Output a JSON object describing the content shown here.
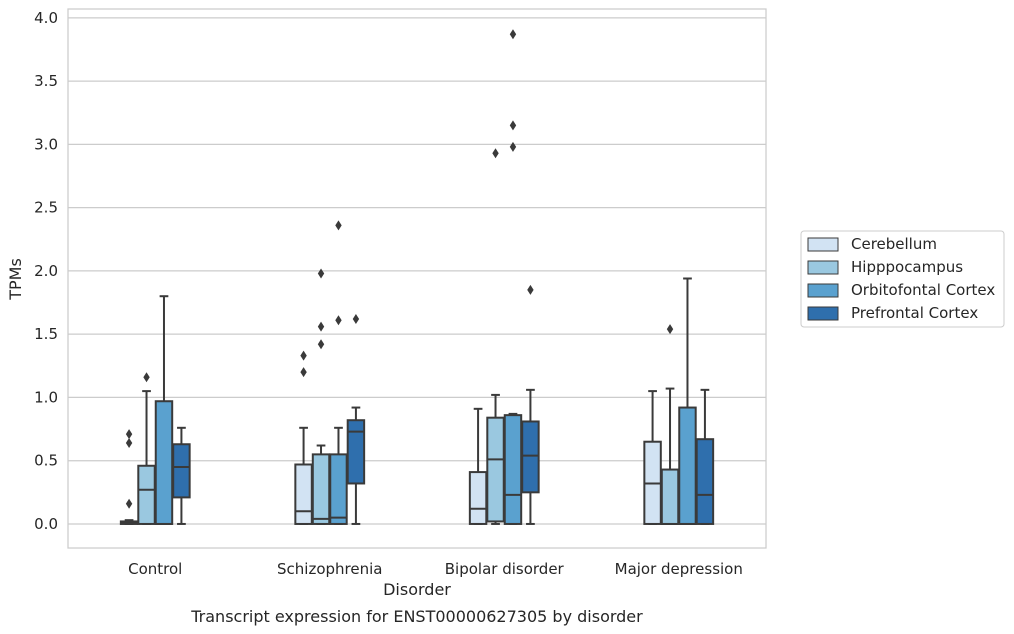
{
  "chart_data": {
    "type": "box",
    "xlabel": "Disorder",
    "ylabel": "TPMs",
    "caption": "Transcript expression for ENST00000627305 by disorder",
    "ylim": [
      -0.19,
      4.07
    ],
    "yticks": [
      0.0,
      0.5,
      1.0,
      1.5,
      2.0,
      2.5,
      3.0,
      3.5,
      4.0
    ],
    "ytick_labels": [
      "0.0",
      "0.5",
      "1.0",
      "1.5",
      "2.0",
      "2.5",
      "3.0",
      "3.5",
      "4.0"
    ],
    "grid": "horizontal",
    "legend_position": "right",
    "categories": [
      "Control",
      "Schizophrenia",
      "Bipolar disorder",
      "Major depression"
    ],
    "series": [
      {
        "name": "Cerebellum",
        "color": "#d2e3f3",
        "boxes": [
          {
            "whislo": 0.0,
            "q1": 0.0,
            "med": 0.01,
            "q3": 0.02,
            "whishi": 0.03,
            "fliers": [
              0.71,
              0.64,
              0.16
            ]
          },
          {
            "whislo": 0.0,
            "q1": 0.0,
            "med": 0.1,
            "q3": 0.47,
            "whishi": 0.76,
            "fliers": [
              1.33,
              1.2
            ]
          },
          {
            "whislo": 0.0,
            "q1": 0.0,
            "med": 0.12,
            "q3": 0.41,
            "whishi": 0.91,
            "fliers": []
          },
          {
            "whislo": 0.0,
            "q1": 0.0,
            "med": 0.32,
            "q3": 0.65,
            "whishi": 1.05,
            "fliers": []
          }
        ]
      },
      {
        "name": "Hipppocampus",
        "color": "#9ac8e0",
        "boxes": [
          {
            "whislo": 0.0,
            "q1": 0.0,
            "med": 0.27,
            "q3": 0.46,
            "whishi": 1.05,
            "fliers": [
              1.16
            ]
          },
          {
            "whislo": 0.0,
            "q1": 0.0,
            "med": 0.04,
            "q3": 0.55,
            "whishi": 0.62,
            "fliers": [
              1.98,
              1.56,
              1.42
            ]
          },
          {
            "whislo": 0.0,
            "q1": 0.02,
            "med": 0.51,
            "q3": 0.84,
            "whishi": 1.02,
            "fliers": [
              2.93
            ]
          },
          {
            "whislo": 0.0,
            "q1": 0.0,
            "med": 0.0,
            "q3": 0.43,
            "whishi": 1.07,
            "fliers": [
              1.54
            ]
          }
        ]
      },
      {
        "name": "Orbitofontal Cortex",
        "color": "#5aa1cf",
        "boxes": [
          {
            "whislo": 0.0,
            "q1": 0.0,
            "med": 0.0,
            "q3": 0.97,
            "whishi": 1.8,
            "fliers": []
          },
          {
            "whislo": 0.0,
            "q1": 0.0,
            "med": 0.05,
            "q3": 0.55,
            "whishi": 0.76,
            "fliers": [
              2.36,
              1.61
            ]
          },
          {
            "whislo": 0.0,
            "q1": 0.0,
            "med": 0.23,
            "q3": 0.86,
            "whishi": 0.87,
            "fliers": [
              3.87,
              3.15,
              2.98
            ]
          },
          {
            "whislo": 0.0,
            "q1": 0.0,
            "med": 0.0,
            "q3": 0.92,
            "whishi": 1.94,
            "fliers": []
          }
        ]
      },
      {
        "name": "Prefrontal Cortex",
        "color": "#2f6fad",
        "boxes": [
          {
            "whislo": 0.0,
            "q1": 0.21,
            "med": 0.45,
            "q3": 0.63,
            "whishi": 0.76,
            "fliers": []
          },
          {
            "whislo": 0.0,
            "q1": 0.32,
            "med": 0.73,
            "q3": 0.82,
            "whishi": 0.92,
            "fliers": [
              1.62
            ]
          },
          {
            "whislo": 0.0,
            "q1": 0.25,
            "med": 0.54,
            "q3": 0.81,
            "whishi": 1.06,
            "fliers": [
              1.85
            ]
          },
          {
            "whislo": 0.0,
            "q1": 0.0,
            "med": 0.23,
            "q3": 0.67,
            "whishi": 1.06,
            "fliers": []
          }
        ]
      }
    ]
  }
}
